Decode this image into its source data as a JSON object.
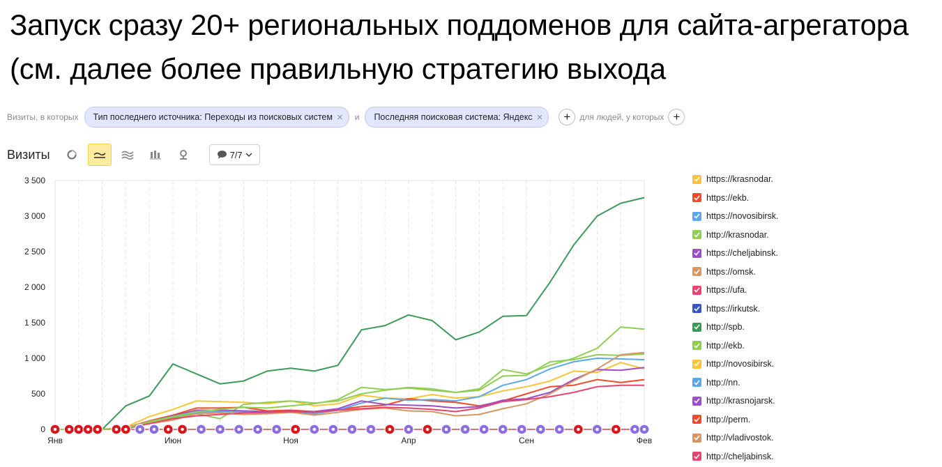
{
  "slide": {
    "title": "Запуск сразу 20+ региональных поддоменов для сайта-агрегатора  (см. далее более правильную стратегию выхода"
  },
  "filters": {
    "prefix": "Визиты, в которых",
    "chip1": "Тип последнего источника: Переходы из поисковых систем",
    "and_label": "и",
    "chip2": "Последняя поисковая система: Яндекс",
    "people_label": "для людей, у которых"
  },
  "toolbar": {
    "metric": "Визиты",
    "series_count": "7/7",
    "icons": [
      "pie-chart-icon",
      "line-chart-icon",
      "stacked-area-icon",
      "bar-chart-icon",
      "map-pin-icon",
      "comment-icon",
      "chevron-down-icon"
    ]
  },
  "chart_data": {
    "type": "line",
    "ylim": [
      0,
      3500
    ],
    "yticks": [
      0,
      500,
      1000,
      1500,
      2000,
      2500,
      3000,
      3500
    ],
    "ytick_labels": [
      "0",
      "500",
      "1 000",
      "1 500",
      "2 000",
      "2 500",
      "3 000",
      "3 500"
    ],
    "xtick_labels": [
      {
        "label": "Янв",
        "index": 0
      },
      {
        "label": "Июн",
        "index": 5
      },
      {
        "label": "Ноя",
        "index": 10
      },
      {
        "label": "Апр",
        "index": 15
      },
      {
        "label": "Сен",
        "index": 20
      },
      {
        "label": "Фев",
        "index": 25
      }
    ],
    "grid": "dashed vertical",
    "legend_position": "right",
    "series": [
      {
        "name": "https://krasnodar.",
        "color": "#f7c535",
        "values": [
          0,
          0,
          0,
          30,
          180,
          280,
          400,
          390,
          380,
          360,
          400,
          330,
          360,
          480,
          440,
          430,
          490,
          440,
          460,
          540,
          600,
          680,
          820,
          800,
          940,
          850
        ]
      },
      {
        "name": "https://ekb.",
        "color": "#f24a2a",
        "values": [
          0,
          0,
          0,
          20,
          120,
          200,
          300,
          300,
          310,
          260,
          270,
          250,
          280,
          320,
          340,
          430,
          400,
          380,
          330,
          400,
          500,
          600,
          620,
          700,
          660,
          700
        ]
      },
      {
        "name": "https://novosibirsk.",
        "color": "#5aa8e8",
        "values": [
          0,
          0,
          0,
          10,
          100,
          170,
          240,
          250,
          240,
          230,
          240,
          220,
          270,
          370,
          440,
          410,
          420,
          400,
          460,
          620,
          700,
          850,
          950,
          1000,
          990,
          980
        ]
      },
      {
        "name": "http://krasnodar.",
        "color": "#8fce52",
        "values": [
          0,
          0,
          0,
          20,
          100,
          160,
          220,
          150,
          350,
          380,
          400,
          370,
          400,
          500,
          550,
          590,
          570,
          520,
          550,
          750,
          760,
          950,
          980,
          1050,
          1040,
          1060
        ]
      },
      {
        "name": "https://cheljabinsk.",
        "color": "#9d4dc8",
        "values": [
          0,
          0,
          0,
          15,
          110,
          190,
          270,
          270,
          260,
          250,
          260,
          250,
          290,
          400,
          350,
          340,
          330,
          300,
          320,
          410,
          430,
          520,
          700,
          840,
          830,
          870
        ]
      },
      {
        "name": "https://omsk.",
        "color": "#d99660",
        "values": [
          0,
          0,
          0,
          10,
          80,
          130,
          220,
          230,
          210,
          220,
          240,
          200,
          240,
          280,
          300,
          260,
          250,
          190,
          210,
          290,
          360,
          500,
          680,
          850,
          1050,
          1080
        ]
      },
      {
        "name": "https://ufa.",
        "color": "#e8436e",
        "values": [
          0,
          0,
          0,
          10,
          80,
          150,
          190,
          210,
          230,
          240,
          250,
          240,
          270,
          290,
          310,
          300,
          280,
          250,
          300,
          390,
          420,
          460,
          520,
          600,
          620,
          620
        ]
      },
      {
        "name": "https://irkutsk.",
        "color": "#3a54c4",
        "values": []
      },
      {
        "name": "http://spb.",
        "color": "#3a9a58",
        "values": [
          0,
          0,
          0,
          330,
          470,
          920,
          780,
          640,
          680,
          820,
          860,
          820,
          900,
          1400,
          1460,
          1610,
          1530,
          1260,
          1370,
          1590,
          1600,
          2070,
          2590,
          3000,
          3180,
          3260
        ]
      },
      {
        "name": "http://ekb.",
        "color": "#8fce52",
        "values": [
          0,
          0,
          0,
          15,
          110,
          180,
          250,
          280,
          310,
          300,
          330,
          360,
          420,
          590,
          560,
          580,
          550,
          520,
          570,
          840,
          780,
          900,
          1000,
          1140,
          1440,
          1410
        ]
      },
      {
        "name": "http://novosibirsk.",
        "color": "#f7c535",
        "values": []
      },
      {
        "name": "http://nn.",
        "color": "#5aa8e8",
        "values": []
      },
      {
        "name": "http://krasnojarsk.",
        "color": "#9d4dc8",
        "values": []
      },
      {
        "name": "http://perm.",
        "color": "#f24a2a",
        "values": []
      },
      {
        "name": "http://vladivostok.",
        "color": "#d99660",
        "values": []
      },
      {
        "name": "http://cheljabinsk.",
        "color": "#e8436e",
        "values": []
      }
    ],
    "annotations": [
      {
        "index": 0.0,
        "kind": "red"
      },
      {
        "index": 0.6,
        "kind": "red"
      },
      {
        "index": 1.0,
        "kind": "red"
      },
      {
        "index": 1.4,
        "kind": "red"
      },
      {
        "index": 1.8,
        "kind": "red"
      },
      {
        "index": 2.6,
        "kind": "red"
      },
      {
        "index": 3.0,
        "kind": "red"
      },
      {
        "index": 3.6,
        "kind": "purple"
      },
      {
        "index": 4.2,
        "kind": "purple"
      },
      {
        "index": 4.8,
        "kind": "red"
      },
      {
        "index": 5.4,
        "kind": "red"
      },
      {
        "index": 6.2,
        "kind": "purple"
      },
      {
        "index": 7.0,
        "kind": "purple"
      },
      {
        "index": 7.8,
        "kind": "purple"
      },
      {
        "index": 8.6,
        "kind": "purple"
      },
      {
        "index": 9.4,
        "kind": "purple"
      },
      {
        "index": 10.2,
        "kind": "red"
      },
      {
        "index": 11.0,
        "kind": "purple"
      },
      {
        "index": 11.8,
        "kind": "purple"
      },
      {
        "index": 12.6,
        "kind": "purple"
      },
      {
        "index": 13.4,
        "kind": "purple"
      },
      {
        "index": 14.2,
        "kind": "red"
      },
      {
        "index": 15.0,
        "kind": "purple"
      },
      {
        "index": 15.8,
        "kind": "red"
      },
      {
        "index": 16.6,
        "kind": "purple"
      },
      {
        "index": 17.4,
        "kind": "purple"
      },
      {
        "index": 18.2,
        "kind": "purple"
      },
      {
        "index": 19.0,
        "kind": "purple"
      },
      {
        "index": 19.8,
        "kind": "purple"
      },
      {
        "index": 20.6,
        "kind": "purple"
      },
      {
        "index": 21.4,
        "kind": "purple"
      },
      {
        "index": 22.2,
        "kind": "red"
      },
      {
        "index": 23.0,
        "kind": "purple"
      },
      {
        "index": 23.8,
        "kind": "red"
      },
      {
        "index": 24.6,
        "kind": "purple"
      },
      {
        "index": 25.0,
        "kind": "purple"
      }
    ]
  }
}
